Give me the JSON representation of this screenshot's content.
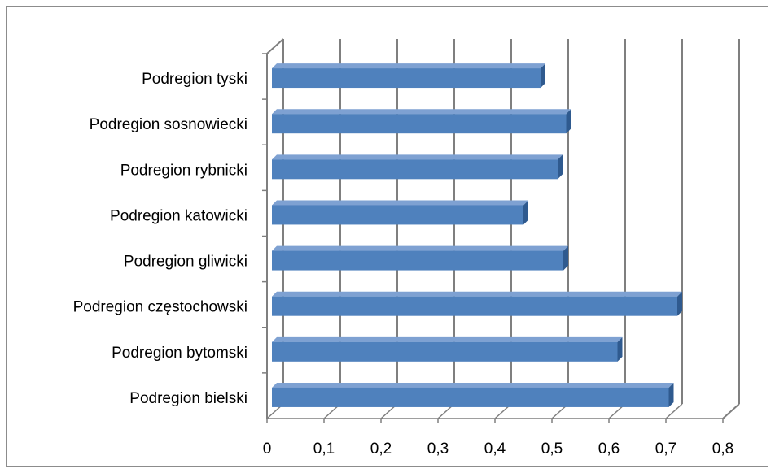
{
  "chart_data": {
    "type": "bar",
    "orientation": "horizontal",
    "style": "3d",
    "categories": [
      "Podregion tyski",
      "Podregion sosnowiecki",
      "Podregion rybnicki",
      "Podregion katowicki",
      "Podregion gliwicki",
      "Podregion częstochowski",
      "Podregion bytomski",
      "Podregion bielski"
    ],
    "series": [
      {
        "values": [
          0.48,
          0.525,
          0.51,
          0.45,
          0.52,
          0.72,
          0.615,
          0.705
        ]
      }
    ],
    "xlim": [
      0,
      0.8
    ],
    "x_ticks": [
      "0",
      "0,1",
      "0,2",
      "0,3",
      "0,4",
      "0,5",
      "0,6",
      "0,7",
      "0,8"
    ],
    "grid": true,
    "legend": "none",
    "colors": {
      "bar_front": "#4f81bd",
      "bar_top": "#7ea1d2",
      "bar_side": "#2f5a8f",
      "grid": "#7f7f7f"
    }
  }
}
